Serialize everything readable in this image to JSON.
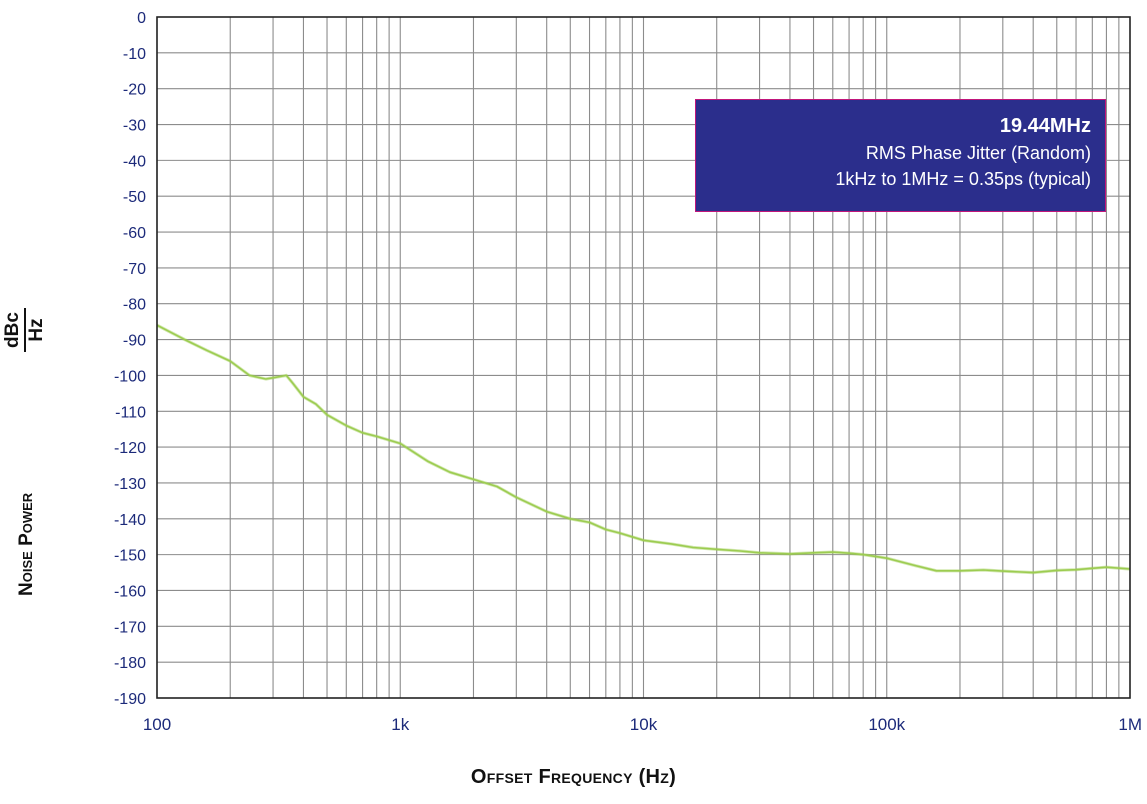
{
  "chart_data": {
    "type": "line",
    "title": "",
    "xlabel": "Offset Frequency (Hz)",
    "ylabel": "Noise Power",
    "ylabel_unit_num": "dBc",
    "ylabel_unit_den": "Hz",
    "x_scale": "log",
    "xlim": [
      100,
      1000000
    ],
    "ylim": [
      -190,
      0
    ],
    "x_ticks": [
      100,
      1000,
      10000,
      100000,
      1000000
    ],
    "x_tick_labels": [
      "100",
      "1k",
      "10k",
      "100k",
      "1M"
    ],
    "y_ticks": [
      0,
      -10,
      -20,
      -30,
      -40,
      -50,
      -60,
      -70,
      -80,
      -90,
      -100,
      -110,
      -120,
      -130,
      -140,
      -150,
      -160,
      -170,
      -180,
      -190
    ],
    "y_tick_labels": [
      "0",
      "-10",
      "-20",
      "-30",
      "-40",
      "-50",
      "-60",
      "-70",
      "-80",
      "-90",
      "-100",
      "-110",
      "-120",
      "-130",
      "-140",
      "-150",
      "-160",
      "-170",
      "-180",
      "-190"
    ],
    "grid": true,
    "series": [
      {
        "color": "#9ccc50",
        "x": [
          100,
          130,
          160,
          200,
          240,
          280,
          310,
          340,
          360,
          400,
          450,
          500,
          600,
          700,
          800,
          1000,
          1300,
          1600,
          2000,
          2500,
          3000,
          4000,
          5000,
          6000,
          7000,
          8000,
          10000,
          13000,
          16000,
          20000,
          25000,
          30000,
          40000,
          50000,
          60000,
          70000,
          80000,
          100000,
          130000,
          160000,
          200000,
          250000,
          300000,
          400000,
          500000,
          600000,
          700000,
          800000,
          1000000
        ],
        "y": [
          -86,
          -90,
          -93,
          -96,
          -100,
          -101,
          -100.5,
          -100,
          -102,
          -106,
          -108,
          -111,
          -114,
          -116,
          -117,
          -119,
          -124,
          -127,
          -129,
          -131,
          -134,
          -138,
          -140,
          -141,
          -143,
          -144,
          -146,
          -147,
          -148,
          -148.5,
          -149,
          -149.5,
          -149.8,
          -149.5,
          -149.3,
          -149.6,
          -150,
          -151,
          -153,
          -154.5,
          -154.5,
          -154.3,
          -154.6,
          -155,
          -154.4,
          -154.2,
          -153.8,
          -153.5,
          -154
        ]
      }
    ],
    "annotation": {
      "line1": "19.44MHz",
      "line2": "RMS Phase Jitter  (Random)",
      "line3": "1kHz to 1MHz = 0.35ps (typical)",
      "background": "#2b2e8c",
      "border": "#c0167b"
    }
  }
}
